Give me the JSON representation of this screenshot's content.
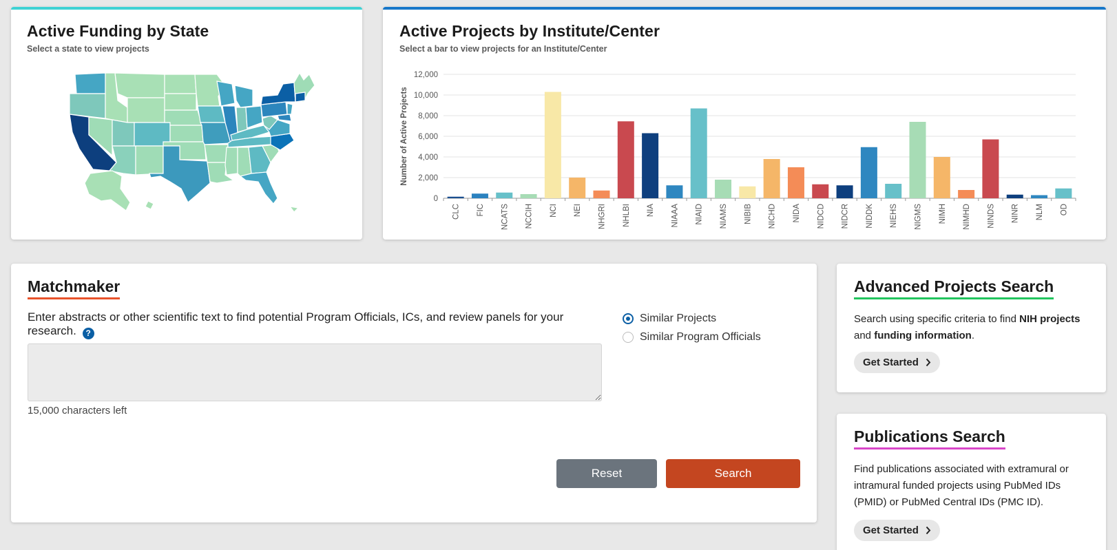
{
  "funding_map": {
    "title": "Active Funding by State",
    "subtitle": "Select a state to view projects"
  },
  "ic_chart": {
    "title": "Active Projects by Institute/Center",
    "subtitle": "Select a bar to view projects for an Institute/Center"
  },
  "chart_data": {
    "type": "bar",
    "title": "Active Projects by Institute/Center",
    "xlabel": "",
    "ylabel": "Number of Active Projects",
    "ylim": [
      0,
      12000
    ],
    "yticks": [
      0,
      2000,
      4000,
      6000,
      8000,
      10000,
      12000
    ],
    "ytick_labels": [
      "0",
      "2,000",
      "4,000",
      "6,000",
      "8,000",
      "10,000",
      "12,000"
    ],
    "grid": true,
    "categories": [
      "CLC",
      "FIC",
      "NCATS",
      "NCCIH",
      "NCI",
      "NEI",
      "NHGRI",
      "NHLBI",
      "NIA",
      "NIAAA",
      "NIAID",
      "NIAMS",
      "NIBIB",
      "NICHD",
      "NIDA",
      "NIDCD",
      "NIDCR",
      "NIDDK",
      "NIEHS",
      "NIGMS",
      "NIMH",
      "NIMHD",
      "NINDS",
      "NINR",
      "NLM",
      "OD"
    ],
    "values": [
      150,
      450,
      550,
      400,
      10300,
      2000,
      750,
      7450,
      6300,
      1250,
      8700,
      1800,
      1150,
      3800,
      3000,
      1350,
      1250,
      4950,
      1400,
      7400,
      4000,
      800,
      5700,
      350,
      300,
      950
    ],
    "colors": [
      "#1a4f8f",
      "#2b82bf",
      "#67c0c9",
      "#a7dcb5",
      "#f8e8a7",
      "#f5b668",
      "#f48c57",
      "#c9494f",
      "#0e3f7e",
      "#2f87c0",
      "#67c0c9",
      "#a7dcb5",
      "#f8e8a7",
      "#f5b668",
      "#f48c57",
      "#c9494f",
      "#0e3f7e",
      "#2f87c0",
      "#67c0c9",
      "#a7dcb5",
      "#f5b668",
      "#f48c57",
      "#c9494f",
      "#0e3f7e",
      "#2f87c0",
      "#67c0c9"
    ]
  },
  "matchmaker": {
    "title": "Matchmaker",
    "description": "Enter abstracts or other scientific text to find potential Program Officials, ICs, and review panels for your research.",
    "help_icon": "question-circle-icon",
    "textarea_value": "",
    "chars_left": "15,000 characters left",
    "options": [
      {
        "label": "Similar Projects",
        "selected": true
      },
      {
        "label": "Similar Program Officials",
        "selected": false
      }
    ],
    "reset_label": "Reset",
    "search_label": "Search"
  },
  "advanced_search": {
    "title": "Advanced Projects Search",
    "text_before": "Search using specific criteria to find ",
    "bold1": "NIH projects",
    "text_mid": " and ",
    "bold2": "funding information",
    "text_after": ".",
    "button_label": "Get Started"
  },
  "publications_search": {
    "title": "Publications Search",
    "text": "Find publications associated with extramural or intramural funded projects using PubMed IDs (PMID) or PubMed Central IDs (PMC ID).",
    "button_label": "Get Started"
  },
  "colors": {
    "accent_teal": "#3fd2d4",
    "accent_blue": "#1777c9",
    "matchmaker_underline": "#e8522a",
    "advanced_underline": "#22c55e",
    "publications_underline": "#d946c8",
    "search_button": "#c44620",
    "reset_button": "#6b747d",
    "radio_selected": "#0b5fa5"
  }
}
